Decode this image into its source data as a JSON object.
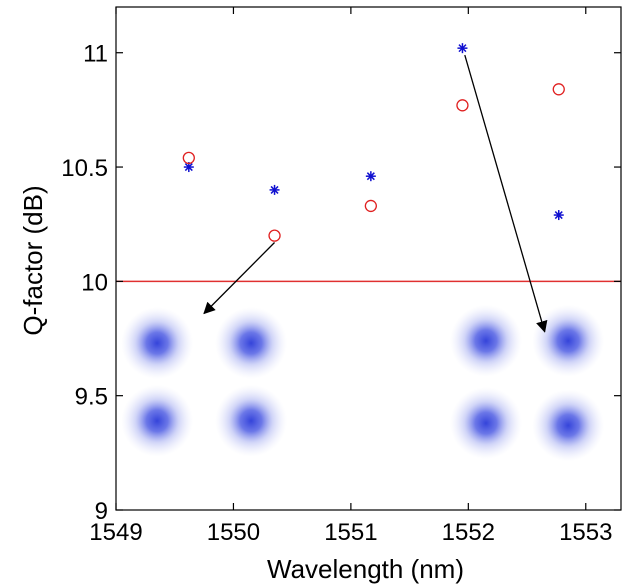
{
  "chart_data": {
    "type": "scatter",
    "xlabel": "Wavelength (nm)",
    "ylabel": "Q-factor (dB)",
    "xlim": [
      1549,
      1553.3
    ],
    "ylim": [
      9,
      11.2
    ],
    "xticks": [
      1549,
      1550,
      1551,
      1552,
      1553
    ],
    "yticks": [
      9,
      9.5,
      10,
      10.5,
      11
    ],
    "xtick_labels": [
      "1549",
      "1550",
      "1551",
      "1552",
      "1553"
    ],
    "ytick_labels": [
      "9",
      "9.5",
      "10",
      "10.5",
      "11"
    ],
    "grid": false,
    "series": [
      {
        "marker": "star",
        "color": "#1010d0",
        "points": [
          [
            1549.62,
            10.5
          ],
          [
            1550.35,
            10.4
          ],
          [
            1551.17,
            10.46
          ],
          [
            1551.95,
            11.02
          ],
          [
            1552.77,
            10.29
          ]
        ]
      },
      {
        "marker": "circle",
        "color": "#e02020",
        "points": [
          [
            1549.62,
            10.54
          ],
          [
            1550.35,
            10.2
          ],
          [
            1551.17,
            10.33
          ],
          [
            1551.95,
            10.77
          ],
          [
            1552.77,
            10.84
          ]
        ]
      }
    ],
    "threshold_line": {
      "y": 10,
      "color": "#e03030"
    },
    "annotations": [
      {
        "type": "arrow",
        "from": [
          1550.35,
          10.17
        ],
        "to": [
          1549.75,
          9.86
        ]
      },
      {
        "type": "arrow",
        "from": [
          1551.97,
          10.99
        ],
        "to": [
          1552.65,
          9.78
        ]
      },
      {
        "type": "constellation",
        "center": [
          1549.35,
          9.73
        ]
      },
      {
        "type": "constellation",
        "center": [
          1550.15,
          9.73
        ]
      },
      {
        "type": "constellation",
        "center": [
          1549.35,
          9.39
        ]
      },
      {
        "type": "constellation",
        "center": [
          1550.15,
          9.39
        ]
      },
      {
        "type": "constellation",
        "center": [
          1552.15,
          9.74
        ]
      },
      {
        "type": "constellation",
        "center": [
          1552.85,
          9.74
        ]
      },
      {
        "type": "constellation",
        "center": [
          1552.15,
          9.38
        ]
      },
      {
        "type": "constellation",
        "center": [
          1552.85,
          9.37
        ]
      }
    ]
  }
}
